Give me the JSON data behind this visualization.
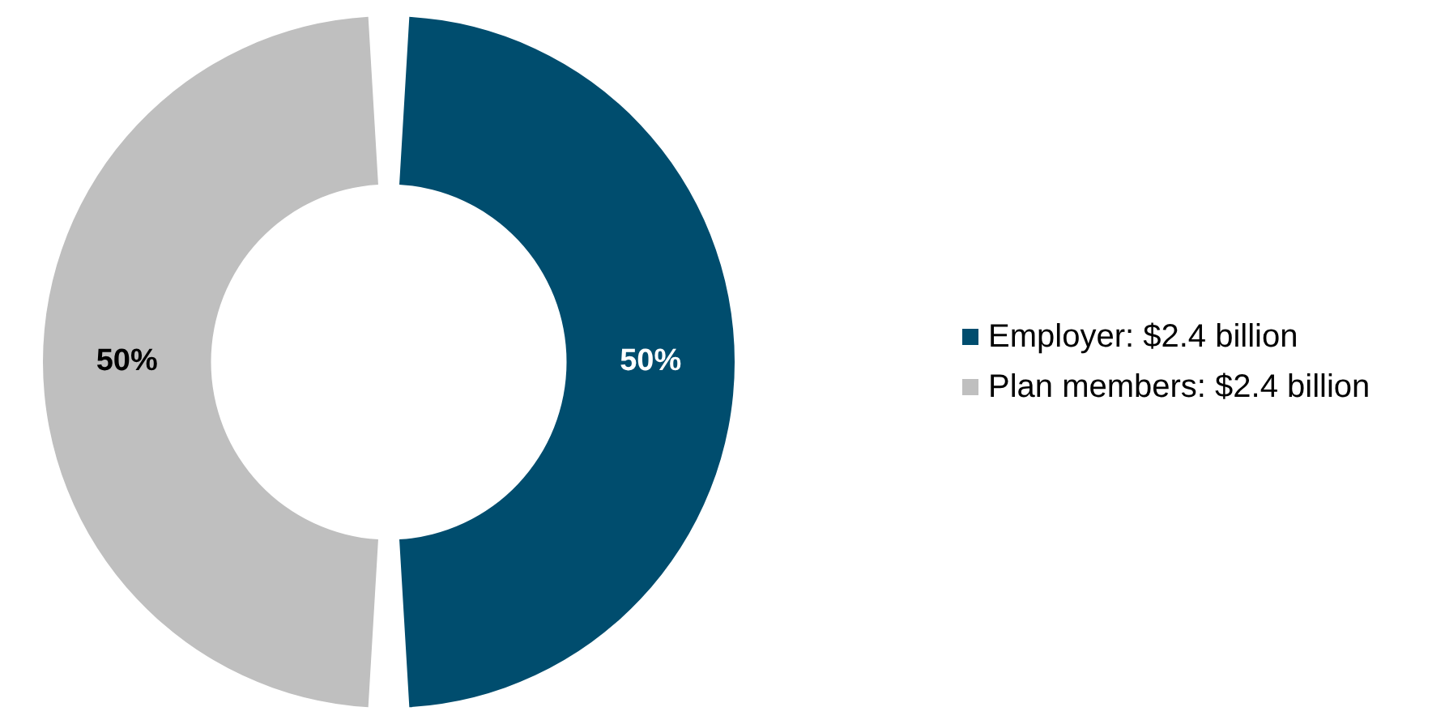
{
  "chart_data": {
    "type": "donut",
    "categories": [
      "Employer: $2.4 billion",
      "Plan members: $2.4 billion"
    ],
    "values": [
      50,
      50
    ],
    "colors": [
      "#004d6e",
      "#bfbfbf"
    ],
    "value_labels": [
      "50%",
      "50%"
    ],
    "legend": "right"
  }
}
